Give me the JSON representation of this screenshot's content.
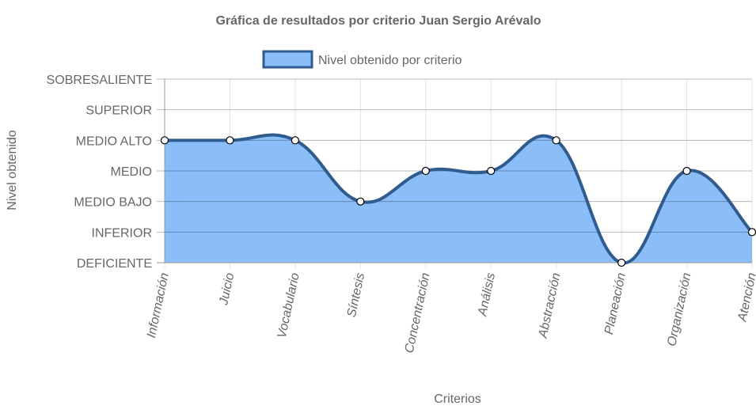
{
  "chart_data": {
    "type": "area",
    "title": "Gráfica de resultados por criterio Juan Sergio Arévalo",
    "xlabel": "Criterios",
    "ylabel": "Nivel obtenido",
    "categories": [
      "Información",
      "Juicio",
      "Vocabulario",
      "Síntesis",
      "Concentración",
      "Análisis",
      "Abstracción",
      "Planeación",
      "Organización",
      "Atención"
    ],
    "y_levels": [
      "DEFICIENTE",
      "INFERIOR",
      "MEDIO BAJO",
      "MEDIO",
      "MEDIO ALTO",
      "SUPERIOR",
      "SOBRESALIENTE"
    ],
    "ylim": [
      0,
      6
    ],
    "series": [
      {
        "name": "Nivel obtenido por criterio",
        "values": [
          4,
          4,
          4,
          2,
          3,
          3,
          4,
          0,
          3,
          1
        ]
      }
    ],
    "legend_position": "top-center",
    "grid": true,
    "colors": {
      "fill": "#8bbdf9",
      "line": "#2f5b8e",
      "point_fill": "#ffffff",
      "point_stroke": "#000000",
      "grid": "#e5e5e5",
      "axis": "#999999",
      "text": "#666666"
    }
  }
}
